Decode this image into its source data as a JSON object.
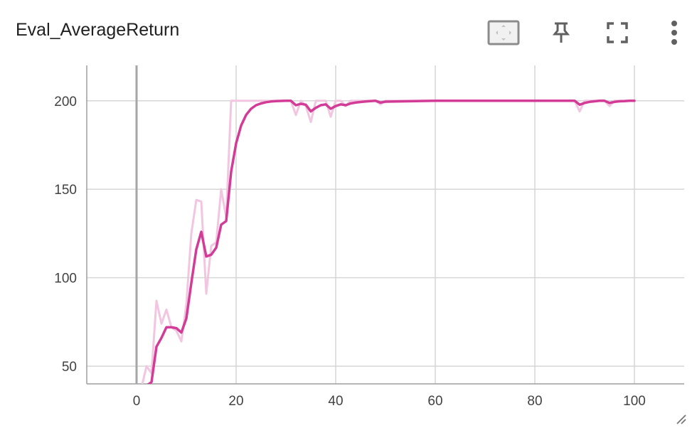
{
  "card": {
    "title": "Eval_AverageReturn"
  },
  "toolbar": {
    "icons": [
      "fit-domain-icon",
      "pin-icon",
      "fullscreen-icon",
      "more-vert-icon"
    ]
  },
  "colors": {
    "smoothed": "#d23c97",
    "raw": "#f2c5e0",
    "grid": "#d6d6d6",
    "axis": "#9e9e9e",
    "zero_line": "#a6a6a6",
    "icon": "#616161"
  },
  "chart_data": {
    "type": "line",
    "title": "Eval_AverageReturn",
    "xlabel": "",
    "ylabel": "",
    "xlim": [
      -10,
      110
    ],
    "ylim": [
      40,
      220
    ],
    "x_ticks": [
      0,
      20,
      40,
      60,
      80,
      100
    ],
    "y_ticks": [
      50,
      100,
      150,
      200
    ],
    "grid": true,
    "series": [
      {
        "role": "raw",
        "x": [
          1,
          2,
          3,
          4,
          5,
          6,
          7,
          8,
          9,
          10,
          11,
          12,
          13,
          14,
          15,
          16,
          17,
          18,
          19,
          20,
          21,
          22,
          23,
          24,
          25,
          26,
          27,
          28,
          29,
          30,
          31,
          32,
          33,
          34,
          35,
          36,
          37,
          38,
          39,
          40,
          41,
          42,
          43,
          44,
          45,
          46,
          47,
          48,
          49,
          50,
          60,
          70,
          80,
          87,
          88,
          89,
          90,
          91,
          92,
          93,
          94,
          95,
          96,
          97,
          98,
          99,
          100
        ],
        "y": [
          38,
          50,
          46,
          87,
          74,
          82,
          72,
          70,
          64,
          85,
          125,
          144,
          143,
          91,
          118,
          120,
          150,
          134,
          200,
          200,
          200,
          200,
          200,
          200,
          200,
          200,
          200,
          200,
          200,
          200,
          200,
          192,
          200,
          197,
          188,
          200,
          200,
          200,
          191,
          200,
          200,
          197,
          200,
          200,
          200,
          200,
          200,
          200,
          198,
          200,
          200,
          200,
          200,
          200,
          200,
          194,
          200,
          200,
          200,
          200,
          200,
          197,
          200,
          200,
          200,
          200,
          200
        ]
      },
      {
        "role": "smoothed",
        "x": [
          1,
          2,
          3,
          4,
          5,
          6,
          7,
          8,
          9,
          10,
          11,
          12,
          13,
          14,
          15,
          16,
          17,
          18,
          19,
          20,
          21,
          22,
          23,
          24,
          25,
          26,
          27,
          28,
          29,
          30,
          31,
          32,
          33,
          34,
          35,
          36,
          37,
          38,
          39,
          40,
          41,
          42,
          43,
          44,
          45,
          46,
          47,
          48,
          49,
          50,
          60,
          70,
          80,
          87,
          88,
          89,
          90,
          91,
          92,
          93,
          94,
          95,
          96,
          97,
          98,
          99,
          100
        ],
        "y": [
          38,
          39,
          41,
          61,
          66,
          72,
          72,
          71.5,
          69,
          77,
          97,
          116,
          126,
          112,
          113,
          117,
          130,
          132,
          160,
          176,
          186,
          192,
          195.5,
          197.5,
          198.5,
          199.2,
          199.6,
          199.8,
          199.9,
          200,
          200,
          197.5,
          198.3,
          197.8,
          194,
          196,
          197.5,
          198,
          195.5,
          197,
          198,
          197.5,
          198.5,
          199,
          199.3,
          199.6,
          199.8,
          200,
          199,
          199.5,
          200,
          200,
          200,
          200,
          200,
          197.8,
          198.8,
          199.4,
          199.7,
          200,
          200,
          198.8,
          199.4,
          199.7,
          199.8,
          200,
          200
        ]
      }
    ]
  }
}
